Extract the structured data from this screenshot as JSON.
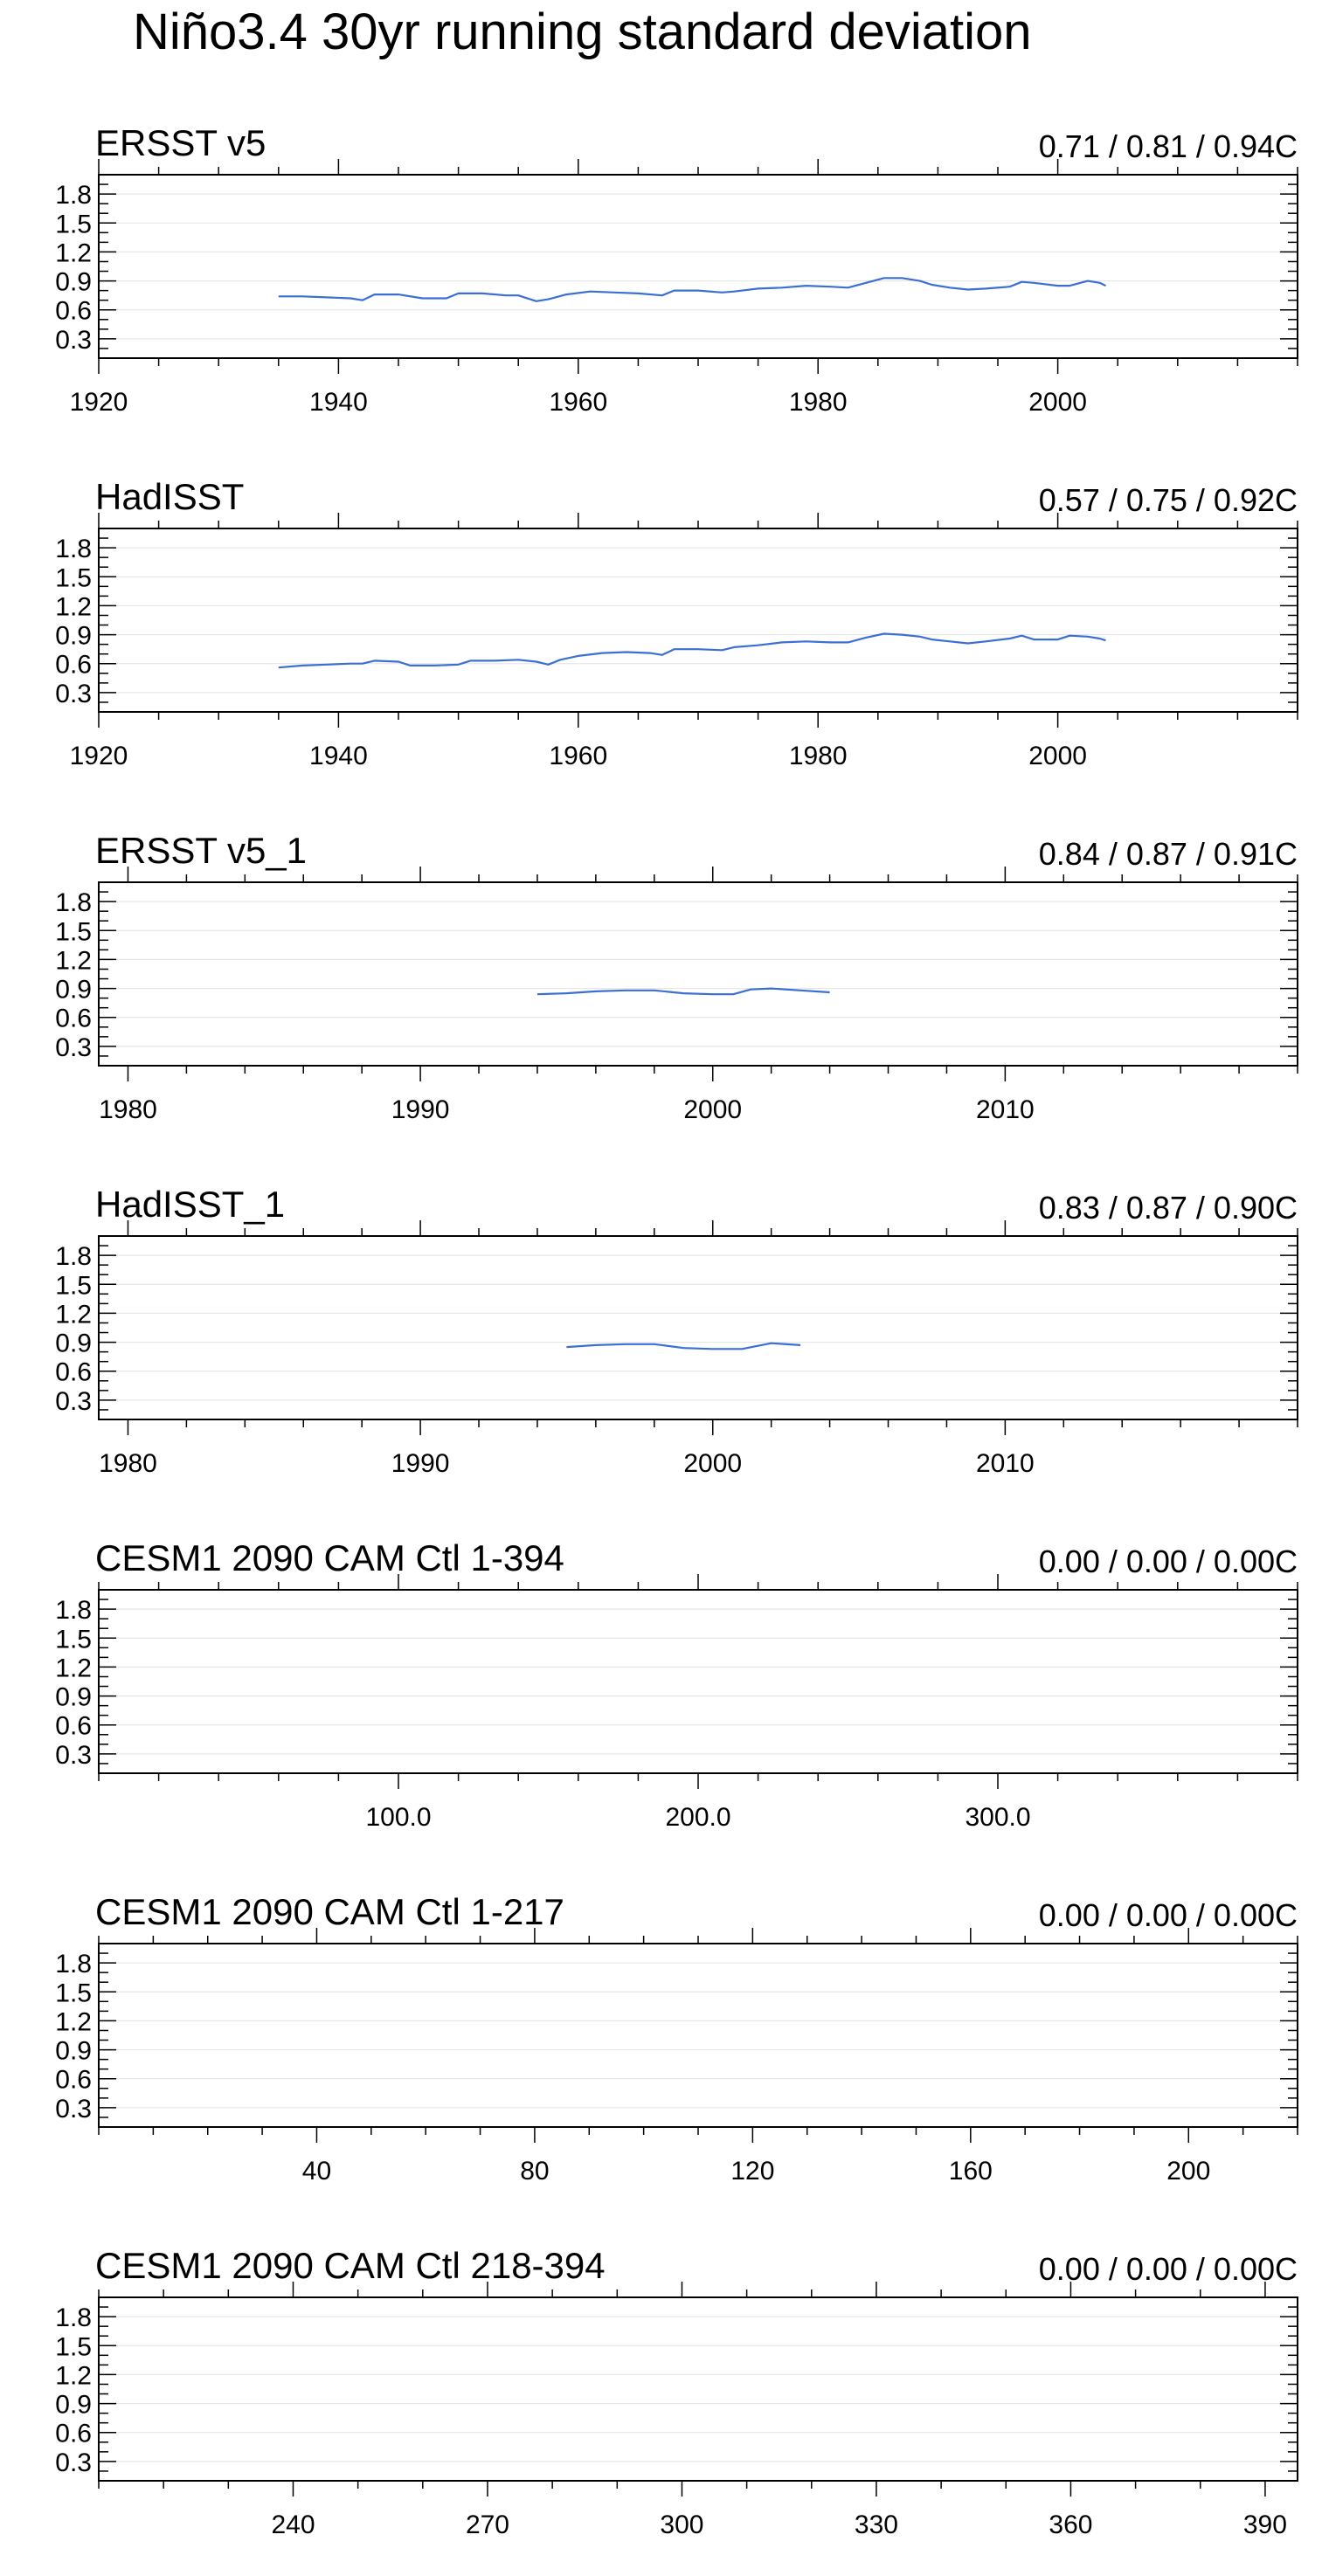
{
  "figure": {
    "title": "Niño3.4 30yr running standard deviation"
  },
  "colors": {
    "line": "#3b6fd6",
    "grid": "#e2e2e2",
    "axis": "#000000"
  },
  "chart_data": [
    {
      "type": "line",
      "title": "ERSST v5",
      "stats_label": "0.71 / 0.81 / 0.94C",
      "xlim": [
        1920,
        2020
      ],
      "ylim": [
        0.1,
        2.0
      ],
      "xticks": [
        1920,
        1940,
        1960,
        1980,
        2000
      ],
      "xtick_labels": [
        "1920",
        "1940",
        "1960",
        "1980",
        "2000"
      ],
      "xminor_step": 5,
      "yticks": [
        0.3,
        0.6,
        0.9,
        1.2,
        1.5,
        1.8
      ],
      "ytick_labels": [
        "0.3",
        "0.6",
        "0.9",
        "1.2",
        "1.5",
        "1.8"
      ],
      "grid": true,
      "series": [
        {
          "x": [
            1935,
            1937,
            1939,
            1941,
            1942,
            1943,
            1945,
            1947,
            1949,
            1950,
            1952,
            1954,
            1955,
            1956.5,
            1957.5,
            1959,
            1961,
            1963,
            1965,
            1967,
            1968,
            1970,
            1972,
            1973,
            1975,
            1977,
            1979,
            1981,
            1982.5,
            1984,
            1985.5,
            1987,
            1988.5,
            1989.5,
            1991,
            1992.5,
            1994,
            1996,
            1997,
            1998,
            2000,
            2001,
            2002.5,
            2003.5,
            2004
          ],
          "y": [
            0.74,
            0.74,
            0.73,
            0.72,
            0.7,
            0.76,
            0.76,
            0.72,
            0.72,
            0.77,
            0.77,
            0.75,
            0.75,
            0.69,
            0.71,
            0.76,
            0.79,
            0.78,
            0.77,
            0.75,
            0.8,
            0.8,
            0.78,
            0.79,
            0.82,
            0.83,
            0.85,
            0.84,
            0.83,
            0.88,
            0.93,
            0.93,
            0.9,
            0.86,
            0.83,
            0.81,
            0.82,
            0.84,
            0.89,
            0.88,
            0.85,
            0.85,
            0.9,
            0.88,
            0.85
          ]
        }
      ]
    },
    {
      "type": "line",
      "title": "HadISST",
      "stats_label": "0.57 / 0.75 / 0.92C",
      "xlim": [
        1920,
        2020
      ],
      "ylim": [
        0.1,
        2.0
      ],
      "xticks": [
        1920,
        1940,
        1960,
        1980,
        2000
      ],
      "xtick_labels": [
        "1920",
        "1940",
        "1960",
        "1980",
        "2000"
      ],
      "xminor_step": 5,
      "yticks": [
        0.3,
        0.6,
        0.9,
        1.2,
        1.5,
        1.8
      ],
      "ytick_labels": [
        "0.3",
        "0.6",
        "0.9",
        "1.2",
        "1.5",
        "1.8"
      ],
      "grid": true,
      "series": [
        {
          "x": [
            1935,
            1937,
            1939,
            1941,
            1942,
            1943,
            1945,
            1946,
            1948,
            1950,
            1951,
            1953,
            1955,
            1956.5,
            1957.5,
            1958.5,
            1960,
            1962,
            1964,
            1966,
            1967,
            1968,
            1970,
            1972,
            1973,
            1975,
            1977,
            1979,
            1981,
            1982.5,
            1984,
            1985.5,
            1987,
            1988.5,
            1989.5,
            1991,
            1992.5,
            1994,
            1996,
            1997,
            1998,
            2000,
            2001,
            2002.5,
            2003.5,
            2004
          ],
          "y": [
            0.56,
            0.58,
            0.59,
            0.6,
            0.6,
            0.63,
            0.62,
            0.58,
            0.58,
            0.59,
            0.63,
            0.63,
            0.64,
            0.62,
            0.59,
            0.64,
            0.68,
            0.71,
            0.72,
            0.71,
            0.69,
            0.75,
            0.75,
            0.74,
            0.77,
            0.79,
            0.82,
            0.83,
            0.82,
            0.82,
            0.87,
            0.91,
            0.9,
            0.88,
            0.85,
            0.83,
            0.81,
            0.83,
            0.86,
            0.89,
            0.85,
            0.85,
            0.89,
            0.88,
            0.86,
            0.84
          ]
        }
      ]
    },
    {
      "type": "line",
      "title": "ERSST v5_1",
      "stats_label": "0.84 / 0.87 / 0.91C",
      "xlim": [
        1979,
        2020
      ],
      "ylim": [
        0.1,
        2.0
      ],
      "xticks": [
        1980,
        1990,
        2000,
        2010
      ],
      "xtick_labels": [
        "1980",
        "1990",
        "2000",
        "2010"
      ],
      "xminor_step": 2,
      "yticks": [
        0.3,
        0.6,
        0.9,
        1.2,
        1.5,
        1.8
      ],
      "ytick_labels": [
        "0.3",
        "0.6",
        "0.9",
        "1.2",
        "1.5",
        "1.8"
      ],
      "grid": true,
      "series": [
        {
          "x": [
            1994,
            1995,
            1996,
            1997,
            1998,
            1999,
            2000,
            2000.7,
            2001.3,
            2002,
            2003,
            2004
          ],
          "y": [
            0.84,
            0.85,
            0.87,
            0.88,
            0.88,
            0.85,
            0.84,
            0.84,
            0.89,
            0.9,
            0.88,
            0.86
          ]
        }
      ]
    },
    {
      "type": "line",
      "title": "HadISST_1",
      "stats_label": "0.83 / 0.87 / 0.90C",
      "xlim": [
        1979,
        2020
      ],
      "ylim": [
        0.1,
        2.0
      ],
      "xticks": [
        1980,
        1990,
        2000,
        2010
      ],
      "xtick_labels": [
        "1980",
        "1990",
        "2000",
        "2010"
      ],
      "xminor_step": 2,
      "yticks": [
        0.3,
        0.6,
        0.9,
        1.2,
        1.5,
        1.8
      ],
      "ytick_labels": [
        "0.3",
        "0.6",
        "0.9",
        "1.2",
        "1.5",
        "1.8"
      ],
      "grid": true,
      "series": [
        {
          "x": [
            1995,
            1996,
            1997,
            1998,
            1999,
            2000,
            2001,
            2002,
            2003
          ],
          "y": [
            0.85,
            0.87,
            0.88,
            0.88,
            0.84,
            0.83,
            0.83,
            0.89,
            0.87
          ]
        }
      ]
    },
    {
      "type": "line",
      "title": "CESM1 2090 CAM Ctl 1-394",
      "stats_label": "0.00 / 0.00 / 0.00C",
      "xlim": [
        0,
        400
      ],
      "ylim": [
        0.1,
        2.0
      ],
      "xticks": [
        100,
        200,
        300
      ],
      "xtick_labels": [
        "100.0",
        "200.0",
        "300.0"
      ],
      "xminor_step": 20,
      "yticks": [
        0.3,
        0.6,
        0.9,
        1.2,
        1.5,
        1.8
      ],
      "ytick_labels": [
        "0.3",
        "0.6",
        "0.9",
        "1.2",
        "1.5",
        "1.8"
      ],
      "grid": true,
      "series": []
    },
    {
      "type": "line",
      "title": "CESM1 2090 CAM Ctl 1-217",
      "stats_label": "0.00 / 0.00 / 0.00C",
      "xlim": [
        0,
        220
      ],
      "ylim": [
        0.1,
        2.0
      ],
      "xticks": [
        40,
        80,
        120,
        160,
        200
      ],
      "xtick_labels": [
        "40",
        "80",
        "120",
        "160",
        "200"
      ],
      "xminor_step": 10,
      "yticks": [
        0.3,
        0.6,
        0.9,
        1.2,
        1.5,
        1.8
      ],
      "ytick_labels": [
        "0.3",
        "0.6",
        "0.9",
        "1.2",
        "1.5",
        "1.8"
      ],
      "grid": true,
      "series": []
    },
    {
      "type": "line",
      "title": "CESM1 2090 CAM Ctl 218-394",
      "stats_label": "0.00 / 0.00 / 0.00C",
      "xlim": [
        210,
        395
      ],
      "ylim": [
        0.1,
        2.0
      ],
      "xticks": [
        240,
        270,
        300,
        330,
        360,
        390
      ],
      "xtick_labels": [
        "240",
        "270",
        "300",
        "330",
        "360",
        "390"
      ],
      "xminor_step": 10,
      "yticks": [
        0.3,
        0.6,
        0.9,
        1.2,
        1.5,
        1.8
      ],
      "ytick_labels": [
        "0.3",
        "0.6",
        "0.9",
        "1.2",
        "1.5",
        "1.8"
      ],
      "grid": true,
      "series": []
    }
  ]
}
